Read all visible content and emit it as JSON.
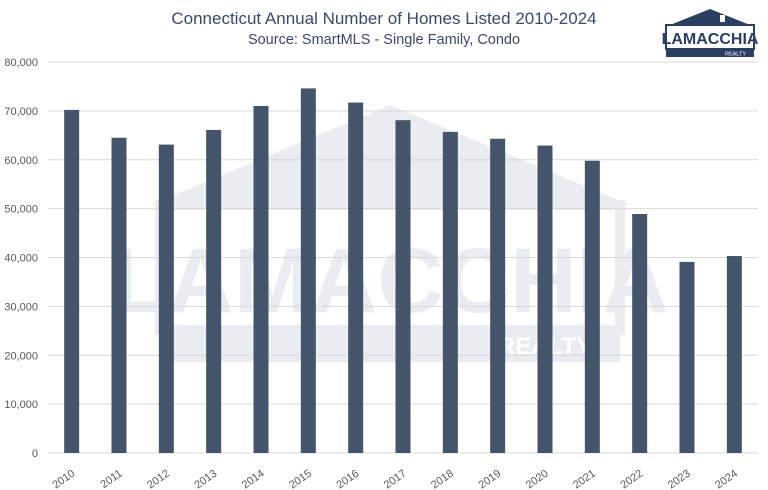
{
  "chart": {
    "title": "Connecticut Annual Number of Homes Listed 2010-2024",
    "subtitle": "Source: SmartMLS - Single Family, Condo"
  },
  "logo": {
    "brand": "LAMACCHIA",
    "sub": "REALTY"
  },
  "colors": {
    "bar": "#44546a",
    "title": "#3b4a6b",
    "grid": "#d9d9d9",
    "watermark": "#e9ecf1"
  },
  "chart_data": {
    "type": "bar",
    "title": "Connecticut Annual Number of Homes Listed 2010-2024",
    "subtitle": "Source: SmartMLS - Single Family, Condo",
    "xlabel": "",
    "ylabel": "",
    "categories": [
      "2010",
      "2011",
      "2012",
      "2013",
      "2014",
      "2015",
      "2016",
      "2017",
      "2018",
      "2019",
      "2020",
      "2021",
      "2022",
      "2023",
      "2024"
    ],
    "values": [
      70200,
      64500,
      63100,
      66100,
      71000,
      74600,
      71700,
      68100,
      65700,
      64300,
      62900,
      59800,
      48900,
      39100,
      40300
    ],
    "ylim": [
      0,
      80000
    ],
    "yticks": [
      "0",
      "10,000",
      "20,000",
      "30,000",
      "40,000",
      "50,000",
      "60,000",
      "70,000",
      "80,000"
    ],
    "grid": true,
    "legend": "none"
  }
}
